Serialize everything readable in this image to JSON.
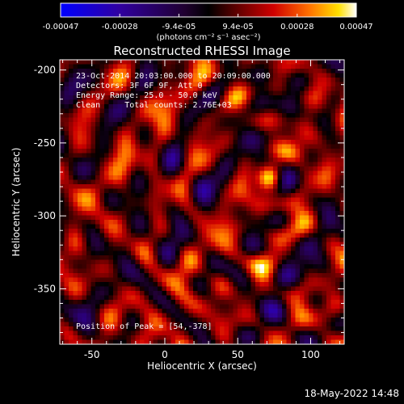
{
  "chart_data": {
    "type": "heatmap",
    "title": "Reconstructed RHESSI Image",
    "xlabel": "Heliocentric X (arcsec)",
    "ylabel": "Heliocentric Y (arcsec)",
    "colorbar": {
      "ticks": [
        "-0.00047",
        "-0.00028",
        "-9.4e-05",
        "9.4e-05",
        "0.00028",
        "0.00047"
      ],
      "unit_label": "(photons cm⁻² s⁻¹ asec⁻²)",
      "range": [
        -0.00047,
        0.00047
      ]
    },
    "x_ticks": [
      -50,
      0,
      50,
      100
    ],
    "y_ticks": [
      -200,
      -250,
      -300,
      -350
    ],
    "xlim": [
      -72,
      123
    ],
    "ylim": [
      -388,
      -193
    ],
    "annotations": {
      "time_range": "23-Oct-2014 20:03:00.000 to 20:09:00.000",
      "detectors": "Detectors: 3F 6F 9F, Att 0",
      "energy_range": "Energy Range: 25.0 - 50.0 keV",
      "clean_info": "Clean     Total counts: 2.76E+03",
      "peak_position": "Position of Peak = [54,-378]"
    },
    "peak": [
      54,
      -378
    ],
    "total_counts": 2760,
    "energy_keV": [
      25.0,
      50.0
    ],
    "grid": false
  },
  "footer": {
    "timestamp": "18-May-2022 14:48"
  },
  "colors": {
    "background": "#000000",
    "text": "#ffffff",
    "negative_end": "#0000ff",
    "positive_end": "#ffffff"
  }
}
